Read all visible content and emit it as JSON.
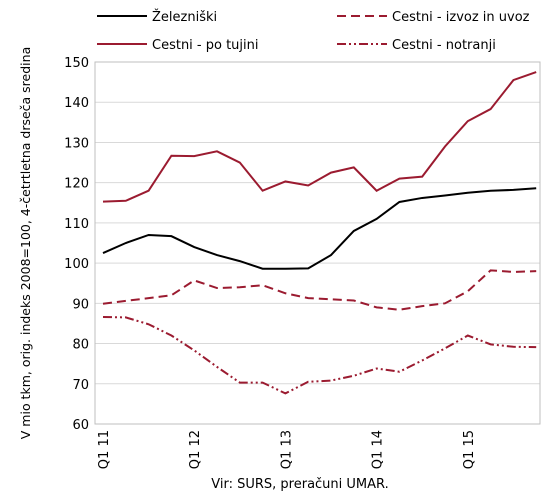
{
  "chart_data": {
    "type": "line",
    "y_label": "V mio tkm, orig. indeks 2008=100, 4-četrtletna drseča sredina",
    "source": "Vir: SURS, preračuni UMAR.",
    "categories": [
      "Q1 11",
      null,
      null,
      null,
      "Q1 12",
      null,
      null,
      null,
      "Q1 13",
      null,
      null,
      null,
      "Q1 14",
      null,
      null,
      null,
      "Q1 15",
      null,
      null,
      null
    ],
    "ylim": [
      60,
      150
    ],
    "yticks": [
      60,
      70,
      80,
      90,
      100,
      110,
      120,
      130,
      140,
      150
    ],
    "grid": true,
    "series": [
      {
        "name": "Železniški",
        "color": "#000000",
        "dash": "solid",
        "values": [
          102.5,
          105,
          107,
          106.7,
          104,
          102,
          100.5,
          98.6,
          98.6,
          98.7,
          102,
          108,
          111,
          115.2,
          116.2,
          116.8,
          117.5,
          118,
          118.2,
          118.6
        ]
      },
      {
        "name": "Cestni - izvoz in uvoz",
        "color": "#9b1b30",
        "dash": "dashed",
        "values": [
          89.9,
          90.6,
          91.3,
          92,
          95.7,
          93.8,
          94,
          94.5,
          92.5,
          91.3,
          91,
          90.7,
          89,
          88.4,
          89.3,
          90,
          93,
          98.2,
          97.8,
          98
        ]
      },
      {
        "name": "Cestni - po tujini",
        "color": "#9b1b30",
        "dash": "solid",
        "values": [
          115.3,
          115.5,
          118,
          126.7,
          126.6,
          127.8,
          125,
          118,
          120.3,
          119.3,
          122.5,
          123.8,
          118,
          121,
          121.5,
          129,
          135.3,
          138.3,
          145.5,
          147.5
        ]
      },
      {
        "name": "Cestni - notranji",
        "color": "#9b1b30",
        "dash": "dashdot",
        "values": [
          86.6,
          86.5,
          84.8,
          82,
          78.3,
          74.2,
          70.3,
          70.3,
          67.6,
          70.5,
          70.8,
          72,
          73.8,
          73,
          75.8,
          78.8,
          82,
          79.8,
          79.2,
          79.1
        ]
      }
    ]
  }
}
